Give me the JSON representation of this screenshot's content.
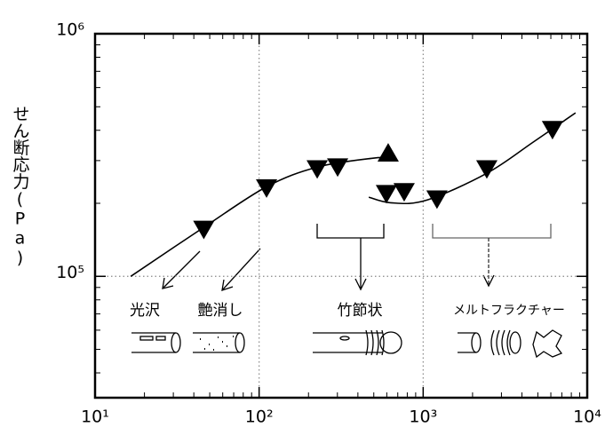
{
  "chart_data": {
    "type": "scatter",
    "ylabel": "せん断応力(Pa)",
    "xscale": "log",
    "yscale": "log",
    "xlim": [
      10,
      10000
    ],
    "ylim": [
      31600,
      1000000
    ],
    "xticks": [
      {
        "value": 10,
        "label": "10¹"
      },
      {
        "value": 100,
        "label": "10²"
      },
      {
        "value": 1000,
        "label": "10³"
      },
      {
        "value": 10000,
        "label": "10⁴"
      }
    ],
    "yticks": [
      {
        "value": 100000,
        "label": "10⁵"
      },
      {
        "value": 1000000,
        "label": "10⁶"
      }
    ],
    "xminorticks": [
      20,
      30,
      40,
      50,
      60,
      70,
      80,
      90,
      200,
      300,
      400,
      500,
      600,
      700,
      800,
      900,
      2000,
      3000,
      4000,
      5000,
      6000,
      7000,
      8000,
      9000
    ],
    "yminorticks": [
      40000,
      50000,
      60000,
      70000,
      80000,
      90000,
      200000,
      300000,
      400000,
      500000,
      600000,
      700000,
      800000,
      900000
    ],
    "grid": true,
    "series": [
      {
        "marker": "triangle-down",
        "color": "#000000",
        "x": [
          46,
          111,
          226,
          301,
          597,
          766,
          1214,
          2443,
          6140
        ],
        "values": [
          156000,
          231000,
          277000,
          282000,
          219000,
          223000,
          208000,
          277000,
          402000
        ]
      },
      {
        "marker": "triangle-up",
        "color": "#000000",
        "x": [
          612
        ],
        "values": [
          323000
        ]
      }
    ],
    "fits": [
      {
        "color": "#000000",
        "x": [
          16.5,
          46.5,
          111,
          226,
          495,
          635
        ],
        "values": [
          100000,
          160000,
          234000,
          282000,
          307000,
          307000
        ]
      },
      {
        "color": "#000000",
        "x": [
          466,
          635,
          1047,
          2443,
          4670,
          8490
        ],
        "values": [
          212000,
          201000,
          206000,
          266000,
          357000,
          472000
        ]
      }
    ],
    "annotations": [
      "光沢",
      "艶消し",
      "竹節状",
      "メルトフラクチャー"
    ]
  }
}
